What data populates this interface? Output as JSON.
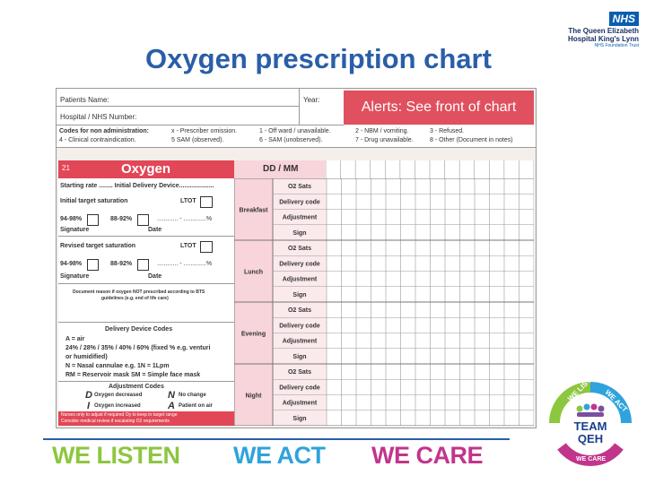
{
  "slide": {
    "title": "Oxygen prescription chart"
  },
  "logo": {
    "badge": "NHS",
    "line1": "The Queen Elizabeth",
    "line2": "Hospital King's Lynn",
    "line3": "NHS Foundation Trust"
  },
  "chart": {
    "patient_name": "Patients Name:",
    "year": "Year:",
    "hospital_number": "Hospital / NHS Number:",
    "alerts": "Alerts: See front of chart",
    "codes": {
      "heading": "Codes for non administration:",
      "c1": "x - Prescriber omission.",
      "c2": "1 - Off ward / unavailable.",
      "c3": "2 - NBM / vomiting.",
      "c4": "3 - Refused.",
      "c5": "4 - Clinical contraindication.",
      "c6": "5 SAM (observed).",
      "c7": "6 - SAM (unobserved).",
      "c8": "7 - Drug unavailable.",
      "c9": "8 - Other (Document in notes)"
    },
    "section_number": "21",
    "section_title": "Oxygen",
    "date_header": "DD / MM",
    "left": {
      "starting_rate": "Starting rate ........ Initial Delivery Device....................",
      "initial_target": "Initial target saturation",
      "ltot1": "LTOT",
      "range1a": "94-98%",
      "range1b": "88-92%",
      "range1c": "............ - .............%",
      "signature1": "Signature",
      "date1": "Date",
      "revised_target": "Revised target saturation",
      "ltot2": "LTOT",
      "range2a": "94-98%",
      "range2b": "88-92%",
      "range2c": "............ - .............%",
      "signature2": "Signature",
      "date2": "Date",
      "doc_reason_1": "Document reason if oxygen NOT prescribed according to BTS",
      "doc_reason_2": "guidelines (e.g. end of life care)",
      "device_codes_title": "Delivery Device Codes",
      "dev1": "A = air",
      "dev2": "24% / 28% / 35% / 40% / 60% (fixed % e.g. venturi",
      "dev3": "or humidified)",
      "dev4": "N = Nasal cannulae e.g. 1N = 1Lpm",
      "dev5": "RM = Reservoir mask       SM = Simple face mask",
      "adj_title": "Adjustment Codes",
      "adj_d": "D",
      "adj_d_text": "Oxygen decreased",
      "adj_n": "N",
      "adj_n_text": "No change",
      "adj_i": "I",
      "adj_i_text": "Oxygen increased",
      "adj_a": "A",
      "adj_a_text": "Patient on air",
      "footnote1": "Nurses only to adjust if required Oy to keep in target range",
      "footnote2": "Consider medical review if escalating O2 requirements"
    },
    "periods": [
      "Breakfast",
      "Lunch",
      "Evening",
      "Night"
    ],
    "row_labels": [
      "O2 Sats",
      "Delivery code",
      "Adjustment",
      "Sign"
    ]
  },
  "footer": {
    "listen": "WE LISTEN",
    "act": "WE ACT",
    "care": "WE CARE",
    "colors": {
      "listen": "#8dc63f",
      "act": "#2fa3dc",
      "care": "#c2358c"
    }
  },
  "team_logo": {
    "top_left": "WE LISTEN",
    "top_right": "WE ACT",
    "bottom": "WE CARE",
    "center1": "TEAM",
    "center2": "QEH"
  }
}
